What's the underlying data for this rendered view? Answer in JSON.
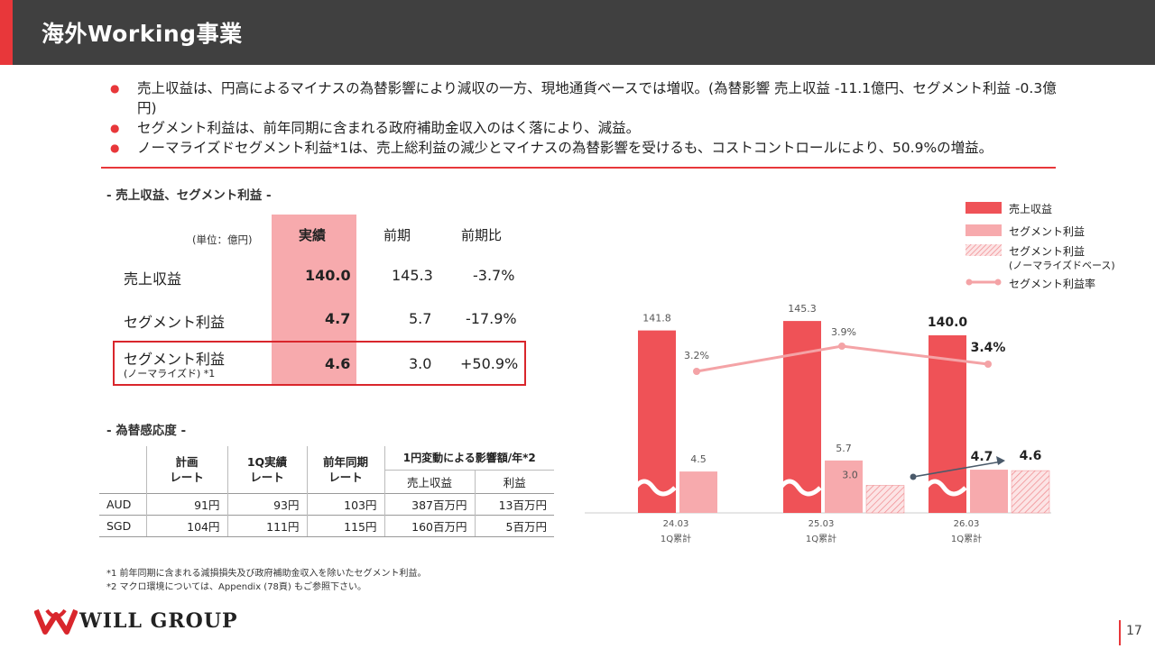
{
  "header": {
    "title": "海外Working事業"
  },
  "bullets": [
    "売上収益は、円高によるマイナスの為替影響により減収の一方、現地通貨ベースでは増収。(為替影響 売上収益 -11.1億円、セグメント利益 -0.3億円)",
    "セグメント利益は、前年同期に含まれる政府補助金収入のはく落により、減益。",
    "ノーマライズドセグメント利益*1は、売上総利益の減少とマイナスの為替影響を受けるも、コストコントロールにより、50.9%の増益。"
  ],
  "section1": {
    "title": "- 売上収益、セグメント利益 -"
  },
  "main_table": {
    "unit": "(単位：億円)",
    "headers": [
      "実績",
      "前期",
      "前期比"
    ],
    "rows": [
      {
        "label": "売上収益",
        "sub": "",
        "actual": "140.0",
        "prev": "145.3",
        "ratio": "-3.7%"
      },
      {
        "label": "セグメント利益",
        "sub": "",
        "actual": "4.7",
        "prev": "5.7",
        "ratio": "-17.9%"
      },
      {
        "label": "セグメント利益",
        "sub": "(ノーマライズド) *1",
        "actual": "4.6",
        "prev": "3.0",
        "ratio": "+50.9%"
      }
    ]
  },
  "section2": {
    "title": "- 為替感応度 -"
  },
  "fx_table": {
    "h_plan": "計画\nレート",
    "h_q1": "1Q実績\nレート",
    "h_prev": "前年同期\nレート",
    "h_impact": "1円変動による影響額/年*2",
    "h_rev": "売上収益",
    "h_profit": "利益",
    "rows": [
      {
        "ccy": "AUD",
        "plan": "91円",
        "q1": "93円",
        "prev": "103円",
        "rev": "387百万円",
        "profit": "13百万円"
      },
      {
        "ccy": "SGD",
        "plan": "104円",
        "q1": "111円",
        "prev": "115円",
        "rev": "160百万円",
        "profit": "5百万円"
      }
    ]
  },
  "footnotes": [
    "*1 前年同期に含まれる減損損失及び政府補助金収入を除いたセグメント利益。",
    "*2 マクロ環境については、Appendix (78頁) もご参照下さい。"
  ],
  "legend": {
    "revenue": "売上収益",
    "segment": "セグメント利益",
    "normalized": "セグメント利益",
    "normalized_sub": "(ノーマライズドベース)",
    "rate": "セグメント利益率"
  },
  "chart_data": {
    "type": "bar",
    "categories": [
      "24.03",
      "25.03",
      "26.03"
    ],
    "category_sub": "1Q累計",
    "series": [
      {
        "name": "売上収益",
        "values": [
          141.8,
          145.3,
          140.0
        ],
        "color": "#ef5257"
      },
      {
        "name": "セグメント利益",
        "values": [
          4.5,
          5.7,
          4.7
        ],
        "color": "#f7aaad"
      },
      {
        "name": "セグメント利益 (ノーマライズドベース)",
        "values": [
          null,
          3.0,
          4.6
        ],
        "color": "#f7aaad"
      },
      {
        "name": "セグメント利益率",
        "values": [
          "3.2%",
          "3.9%",
          "3.4%"
        ],
        "color": "#f4a3a6"
      }
    ],
    "broken_axis": true
  },
  "brand": {
    "logo_text": "WILL GROUP",
    "accent": "#e8373a"
  },
  "page_number": "17"
}
